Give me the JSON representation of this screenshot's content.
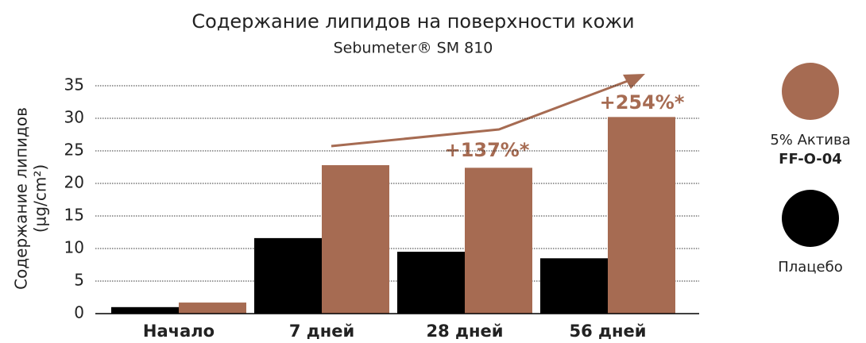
{
  "chart_data": {
    "type": "bar",
    "title": "Содержание липидов на поверхности кожи",
    "subtitle": "Sebumeter® SM 810",
    "y_label": [
      "Содержание липидов",
      "(µg/cm²)"
    ],
    "categories": [
      "Начало",
      "7 дней",
      "28 дней",
      "56 дней"
    ],
    "series": [
      {
        "name": "Плацебо",
        "color": "#000000",
        "values": [
          1,
          11.6,
          9.5,
          8.5
        ]
      },
      {
        "name": [
          "5% Актива",
          "FF-O-04"
        ],
        "color": "#a66b52",
        "values": [
          1.7,
          22.8,
          22.4,
          30.2
        ]
      }
    ],
    "annotations": [
      "+137%*",
      "+254%*"
    ],
    "ylim": [
      0,
      35
    ],
    "yticks": [
      0,
      5,
      10,
      15,
      20,
      25,
      30,
      35
    ],
    "grid": true
  }
}
